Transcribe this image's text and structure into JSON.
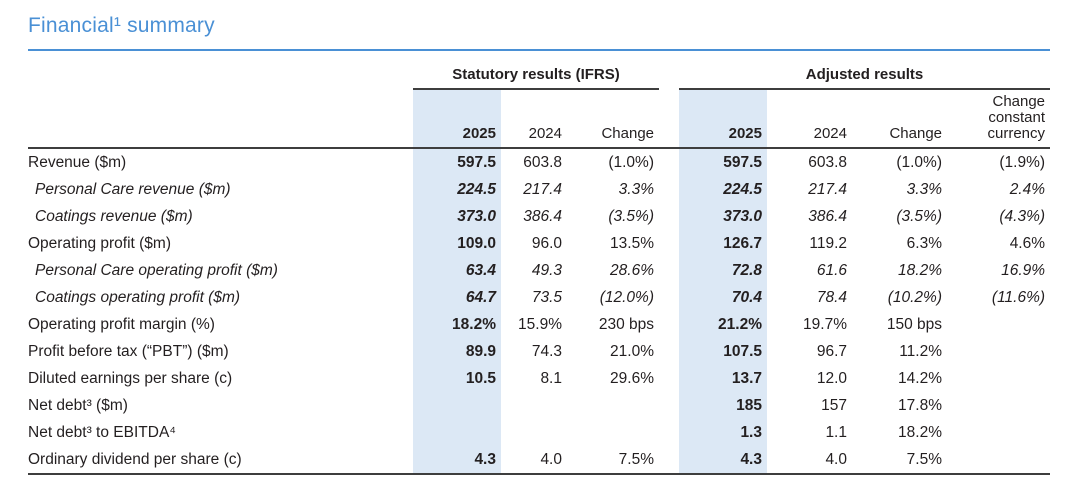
{
  "page": {
    "title": "Financial¹ summary"
  },
  "colors": {
    "accent_blue": "#4a90d5",
    "highlight_band": "#dce8f5",
    "rule_dark": "#3e3e3e",
    "text": "#231f20"
  },
  "table": {
    "group_headers": [
      {
        "label": "Statutory results (IFRS)"
      },
      {
        "label": "Adjusted results"
      }
    ],
    "columns": [
      {
        "key": "statutory-2025",
        "label": "2025",
        "highlight": true,
        "bold": true,
        "gap_before": false
      },
      {
        "key": "statutory-2024",
        "label": "2024",
        "highlight": false,
        "bold": false,
        "gap_before": false
      },
      {
        "key": "statutory-change",
        "label": "Change",
        "highlight": false,
        "bold": false,
        "gap_before": false
      },
      {
        "key": "adjusted-2025",
        "label": "2025",
        "highlight": true,
        "bold": true,
        "gap_before": true
      },
      {
        "key": "adjusted-2024",
        "label": "2024",
        "highlight": false,
        "bold": false,
        "gap_before": false
      },
      {
        "key": "adjusted-change",
        "label": "Change",
        "highlight": false,
        "bold": false,
        "gap_before": false
      },
      {
        "key": "change-constant-currency",
        "label": "Change constant currency",
        "highlight": false,
        "bold": false,
        "gap_before": false
      }
    ],
    "rows": [
      {
        "label": "Revenue ($m)",
        "italic": false,
        "values": [
          "597.5",
          "603.8",
          "(1.0%)",
          "597.5",
          "603.8",
          "(1.0%)",
          "(1.9%)"
        ]
      },
      {
        "label": "Personal Care revenue ($m)",
        "italic": true,
        "values": [
          "224.5",
          "217.4",
          "3.3%",
          "224.5",
          "217.4",
          "3.3%",
          "2.4%"
        ]
      },
      {
        "label": "Coatings revenue ($m)",
        "italic": true,
        "values": [
          "373.0",
          "386.4",
          "(3.5%)",
          "373.0",
          "386.4",
          "(3.5%)",
          "(4.3%)"
        ]
      },
      {
        "label": "Operating profit ($m)",
        "italic": false,
        "values": [
          "109.0",
          "96.0",
          "13.5%",
          "126.7",
          "119.2",
          "6.3%",
          "4.6%"
        ]
      },
      {
        "label": "Personal Care operating profit ($m)",
        "italic": true,
        "values": [
          "63.4",
          "49.3",
          "28.6%",
          "72.8",
          "61.6",
          "18.2%",
          "16.9%"
        ]
      },
      {
        "label": "Coatings operating profit ($m)",
        "italic": true,
        "values": [
          "64.7",
          "73.5",
          "(12.0%)",
          "70.4",
          "78.4",
          "(10.2%)",
          "(11.6%)"
        ]
      },
      {
        "label": "Operating profit margin (%)",
        "italic": false,
        "values": [
          "18.2%",
          "15.9%",
          "230 bps",
          "21.2%",
          "19.7%",
          "150 bps",
          ""
        ]
      },
      {
        "label": "Profit before tax (“PBT”) ($m)",
        "italic": false,
        "values": [
          "89.9",
          "74.3",
          "21.0%",
          "107.5",
          "96.7",
          "11.2%",
          ""
        ]
      },
      {
        "label": "Diluted earnings per share (c)",
        "italic": false,
        "values": [
          "10.5",
          "8.1",
          "29.6%",
          "13.7",
          "12.0",
          "14.2%",
          ""
        ]
      },
      {
        "label": "Net debt³ ($m)",
        "italic": false,
        "values": [
          "",
          "",
          "",
          "185",
          "157",
          "17.8%",
          ""
        ]
      },
      {
        "label": "Net debt³ to EBITDA⁴",
        "italic": false,
        "values": [
          "",
          "",
          "",
          "1.3",
          "1.1",
          "18.2%",
          ""
        ]
      },
      {
        "label": "Ordinary dividend per share (c)",
        "italic": false,
        "values": [
          "4.3",
          "4.0",
          "7.5%",
          "4.3",
          "4.0",
          "7.5%",
          ""
        ]
      }
    ]
  }
}
